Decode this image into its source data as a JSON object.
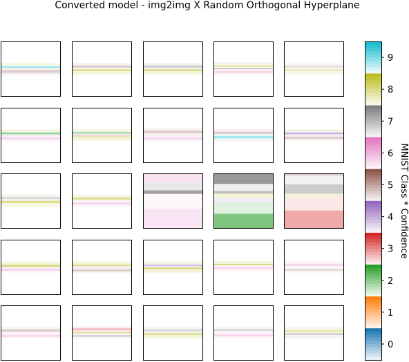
{
  "chart_data": {
    "type": "heatmap",
    "title": "Converted model - img2img X Random Orthogonal Hyperplane",
    "grid": {
      "rows": 5,
      "cols": 5
    },
    "colorbar": {
      "label": "MNIST Class * Confidence",
      "range": [
        -0.5,
        9.5
      ],
      "ticks": [
        "0",
        "1",
        "2",
        "3",
        "4",
        "5",
        "6",
        "7",
        "8",
        "9"
      ],
      "class_colors": [
        "#1f77b4",
        "#ff7f0e",
        "#2ca02c",
        "#d62728",
        "#9467bd",
        "#8c564b",
        "#e377c2",
        "#7f7f7f",
        "#bcbd22",
        "#17becf"
      ]
    },
    "panels": [
      {
        "row": 1,
        "col": 1,
        "bands": [
          {
            "center": 0.5,
            "width": 0.08,
            "cls": 8,
            "conf": 0.6
          },
          {
            "center": 0.47,
            "width": 0.03,
            "cls": 9,
            "conf": 0.4
          },
          {
            "center": 0.55,
            "width": 0.05,
            "cls": 5,
            "conf": 0.3
          }
        ]
      },
      {
        "row": 1,
        "col": 2,
        "bands": [
          {
            "center": 0.5,
            "width": 0.08,
            "cls": 8,
            "conf": 0.6
          },
          {
            "center": 0.46,
            "width": 0.04,
            "cls": 5,
            "conf": 0.3
          }
        ]
      },
      {
        "row": 1,
        "col": 3,
        "bands": [
          {
            "center": 0.5,
            "width": 0.08,
            "cls": 8,
            "conf": 0.6
          },
          {
            "center": 0.46,
            "width": 0.04,
            "cls": 7,
            "conf": 0.4
          }
        ]
      },
      {
        "row": 1,
        "col": 4,
        "bands": [
          {
            "center": 0.5,
            "width": 0.09,
            "cls": 7,
            "conf": 0.5
          },
          {
            "center": 0.45,
            "width": 0.03,
            "cls": 8,
            "conf": 0.4
          },
          {
            "center": 0.56,
            "width": 0.04,
            "cls": 6,
            "conf": 0.3
          }
        ]
      },
      {
        "row": 1,
        "col": 5,
        "bands": [
          {
            "center": 0.5,
            "width": 0.08,
            "cls": 8,
            "conf": 0.4
          },
          {
            "center": 0.46,
            "width": 0.04,
            "cls": 5,
            "conf": 0.2
          }
        ]
      },
      {
        "row": 2,
        "col": 1,
        "bands": [
          {
            "center": 0.5,
            "width": 0.08,
            "cls": 8,
            "conf": 0.6
          },
          {
            "center": 0.47,
            "width": 0.03,
            "cls": 2,
            "conf": 0.5
          },
          {
            "center": 0.56,
            "width": 0.04,
            "cls": 6,
            "conf": 0.3
          }
        ]
      },
      {
        "row": 2,
        "col": 2,
        "bands": [
          {
            "center": 0.5,
            "width": 0.08,
            "cls": 8,
            "conf": 0.6
          },
          {
            "center": 0.49,
            "width": 0.03,
            "cls": 3,
            "conf": 0.5
          },
          {
            "center": 0.46,
            "width": 0.03,
            "cls": 2,
            "conf": 0.4
          }
        ]
      },
      {
        "row": 2,
        "col": 3,
        "bands": [
          {
            "center": 0.5,
            "width": 0.08,
            "cls": 8,
            "conf": 0.6
          },
          {
            "center": 0.44,
            "width": 0.05,
            "cls": 5,
            "conf": 0.3
          },
          {
            "center": 0.56,
            "width": 0.04,
            "cls": 6,
            "conf": 0.3
          }
        ]
      },
      {
        "row": 2,
        "col": 4,
        "bands": [
          {
            "center": 0.5,
            "width": 0.08,
            "cls": 3,
            "conf": 0.5
          },
          {
            "center": 0.46,
            "width": 0.04,
            "cls": 5,
            "conf": 0.3
          },
          {
            "center": 0.54,
            "width": 0.04,
            "cls": 9,
            "conf": 0.4
          }
        ]
      },
      {
        "row": 2,
        "col": 5,
        "bands": [
          {
            "center": 0.5,
            "width": 0.08,
            "cls": 8,
            "conf": 0.6
          },
          {
            "center": 0.47,
            "width": 0.03,
            "cls": 4,
            "conf": 0.5
          },
          {
            "center": 0.55,
            "width": 0.04,
            "cls": 5,
            "conf": 0.3
          }
        ]
      },
      {
        "row": 3,
        "col": 1,
        "bands": [
          {
            "center": 0.5,
            "width": 0.09,
            "cls": 8,
            "conf": 0.5
          },
          {
            "center": 0.45,
            "width": 0.04,
            "cls": 7,
            "conf": 0.3
          }
        ]
      },
      {
        "row": 3,
        "col": 2,
        "bands": [
          {
            "center": 0.5,
            "width": 0.08,
            "cls": 5,
            "conf": 0.5
          },
          {
            "center": 0.46,
            "width": 0.04,
            "cls": 8,
            "conf": 0.5
          },
          {
            "center": 0.55,
            "width": 0.04,
            "cls": 6,
            "conf": 0.3
          }
        ]
      },
      {
        "row": 3,
        "col": 3,
        "bands": [
          {
            "center": 0.12,
            "width": 0.22,
            "cls": 6,
            "conf": 0.2
          },
          {
            "center": 0.4,
            "width": 0.18,
            "cls": 7,
            "conf": 0.7
          },
          {
            "center": 0.56,
            "width": 0.14,
            "cls": 9,
            "conf": 0.4
          },
          {
            "center": 0.5,
            "width": 0.06,
            "cls": 4,
            "conf": 0.3
          },
          {
            "center": 0.82,
            "width": 0.34,
            "cls": 6,
            "conf": 0.2
          }
        ]
      },
      {
        "row": 3,
        "col": 4,
        "bands": [
          {
            "center": 0.15,
            "width": 0.3,
            "cls": 7,
            "conf": 0.8
          },
          {
            "center": 0.4,
            "width": 0.16,
            "cls": 7,
            "conf": 0.5
          },
          {
            "center": 0.55,
            "width": 0.14,
            "cls": 8,
            "conf": 0.7
          },
          {
            "center": 0.58,
            "width": 0.1,
            "cls": 4,
            "conf": 0.5
          },
          {
            "center": 0.87,
            "width": 0.26,
            "cls": 2,
            "conf": 0.6
          }
        ]
      },
      {
        "row": 3,
        "col": 5,
        "bands": [
          {
            "center": 0.12,
            "width": 0.22,
            "cls": 5,
            "conf": 0.3
          },
          {
            "center": 0.3,
            "width": 0.2,
            "cls": 7,
            "conf": 0.4
          },
          {
            "center": 0.58,
            "width": 0.16,
            "cls": 8,
            "conf": 0.7
          },
          {
            "center": 0.84,
            "width": 0.32,
            "cls": 3,
            "conf": 0.4
          }
        ]
      },
      {
        "row": 4,
        "col": 1,
        "bands": [
          {
            "center": 0.5,
            "width": 0.08,
            "cls": 8,
            "conf": 0.6
          },
          {
            "center": 0.55,
            "width": 0.04,
            "cls": 6,
            "conf": 0.3
          }
        ]
      },
      {
        "row": 4,
        "col": 2,
        "bands": [
          {
            "center": 0.5,
            "width": 0.08,
            "cls": 8,
            "conf": 0.6
          },
          {
            "center": 0.52,
            "width": 0.03,
            "cls": 4,
            "conf": 0.4
          },
          {
            "center": 0.56,
            "width": 0.04,
            "cls": 5,
            "conf": 0.3
          }
        ]
      },
      {
        "row": 4,
        "col": 3,
        "bands": [
          {
            "center": 0.5,
            "width": 0.08,
            "cls": 8,
            "conf": 0.6
          },
          {
            "center": 0.47,
            "width": 0.03,
            "cls": 4,
            "conf": 0.4
          }
        ]
      },
      {
        "row": 4,
        "col": 4,
        "bands": [
          {
            "center": 0.48,
            "width": 0.07,
            "cls": 8,
            "conf": 0.6
          },
          {
            "center": 0.52,
            "width": 0.04,
            "cls": 6,
            "conf": 0.3
          }
        ]
      },
      {
        "row": 4,
        "col": 5,
        "bands": [
          {
            "center": 0.5,
            "width": 0.08,
            "cls": 8,
            "conf": 0.5
          },
          {
            "center": 0.46,
            "width": 0.04,
            "cls": 6,
            "conf": 0.3
          },
          {
            "center": 0.55,
            "width": 0.04,
            "cls": 5,
            "conf": 0.2
          }
        ]
      },
      {
        "row": 5,
        "col": 1,
        "bands": [
          {
            "center": 0.5,
            "width": 0.08,
            "cls": 8,
            "conf": 0.6
          },
          {
            "center": 0.46,
            "width": 0.04,
            "cls": 5,
            "conf": 0.3
          },
          {
            "center": 0.56,
            "width": 0.04,
            "cls": 6,
            "conf": 0.3
          }
        ]
      },
      {
        "row": 5,
        "col": 2,
        "bands": [
          {
            "center": 0.5,
            "width": 0.09,
            "cls": 8,
            "conf": 0.6
          },
          {
            "center": 0.44,
            "width": 0.04,
            "cls": 3,
            "conf": 0.3
          },
          {
            "center": 0.56,
            "width": 0.04,
            "cls": 7,
            "conf": 0.3
          }
        ]
      },
      {
        "row": 5,
        "col": 3,
        "bands": [
          {
            "center": 0.5,
            "width": 0.08,
            "cls": 8,
            "conf": 0.6
          },
          {
            "center": 0.46,
            "width": 0.04,
            "cls": 7,
            "conf": 0.3
          }
        ]
      },
      {
        "row": 5,
        "col": 4,
        "bands": [
          {
            "center": 0.5,
            "width": 0.08,
            "cls": 8,
            "conf": 0.5
          },
          {
            "center": 0.45,
            "width": 0.04,
            "cls": 7,
            "conf": 0.3
          },
          {
            "center": 0.55,
            "width": 0.04,
            "cls": 6,
            "conf": 0.3
          }
        ]
      },
      {
        "row": 5,
        "col": 5,
        "bands": [
          {
            "center": 0.5,
            "width": 0.08,
            "cls": 7,
            "conf": 0.4
          },
          {
            "center": 0.47,
            "width": 0.03,
            "cls": 8,
            "conf": 0.4
          }
        ]
      }
    ]
  }
}
